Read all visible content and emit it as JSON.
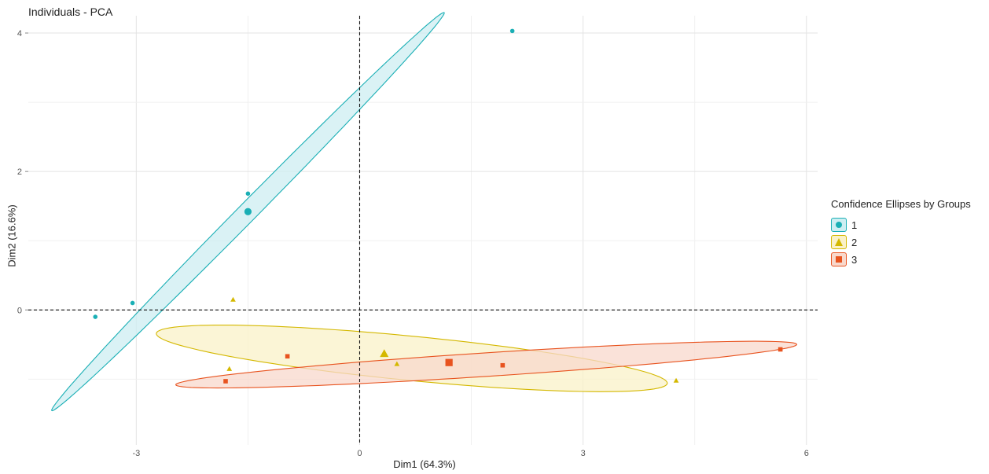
{
  "chart_data": {
    "type": "scatter",
    "title": "Individuals - PCA",
    "xlabel": "Dim1 (64.3%)",
    "ylabel": "Dim2 (16.6%)",
    "xlim": [
      -4.45,
      6.15
    ],
    "ylim": [
      -1.95,
      4.25
    ],
    "xticks": [
      -3,
      0,
      3,
      6
    ],
    "yticks": [
      0,
      2,
      4
    ],
    "grid": true,
    "reference_lines": {
      "x": 0,
      "y": 0,
      "style": "dashed"
    },
    "legend": {
      "title": "Confidence Ellipses by Groups",
      "placement": "right"
    },
    "series": [
      {
        "name": "1",
        "color": "#1aafb5",
        "fill": "#cdeef2",
        "shape": "circle",
        "points": [
          [
            -3.55,
            -0.1
          ],
          [
            -3.05,
            0.1
          ],
          [
            -1.5,
            1.68
          ],
          [
            2.05,
            4.03
          ]
        ],
        "centroid": [
          -1.5,
          1.42
        ],
        "ellipse": {
          "cx": -1.5,
          "cy": 1.42,
          "rx": 3.9,
          "ry": 0.13,
          "angle_deg": 47.5
        }
      },
      {
        "name": "2",
        "color": "#d4b800",
        "fill": "#faf1c8",
        "shape": "triangle",
        "points": [
          [
            -1.7,
            0.15
          ],
          [
            -1.75,
            -0.85
          ],
          [
            0.5,
            -0.78
          ],
          [
            4.25,
            -1.02
          ]
        ],
        "centroid": [
          0.33,
          -0.63
        ],
        "ellipse": {
          "cx": 0.7,
          "cy": -0.7,
          "rx": 3.45,
          "ry": 0.32,
          "angle_deg": -6
        }
      },
      {
        "name": "3",
        "color": "#e8531f",
        "fill": "#f8d8cc",
        "shape": "square",
        "points": [
          [
            -1.8,
            -1.03
          ],
          [
            -0.97,
            -0.67
          ],
          [
            1.92,
            -0.8
          ],
          [
            5.65,
            -0.57
          ]
        ],
        "centroid": [
          1.2,
          -0.76
        ],
        "ellipse": {
          "cx": 1.7,
          "cy": -0.79,
          "rx": 4.18,
          "ry": 0.17,
          "angle_deg": 4
        }
      }
    ]
  }
}
